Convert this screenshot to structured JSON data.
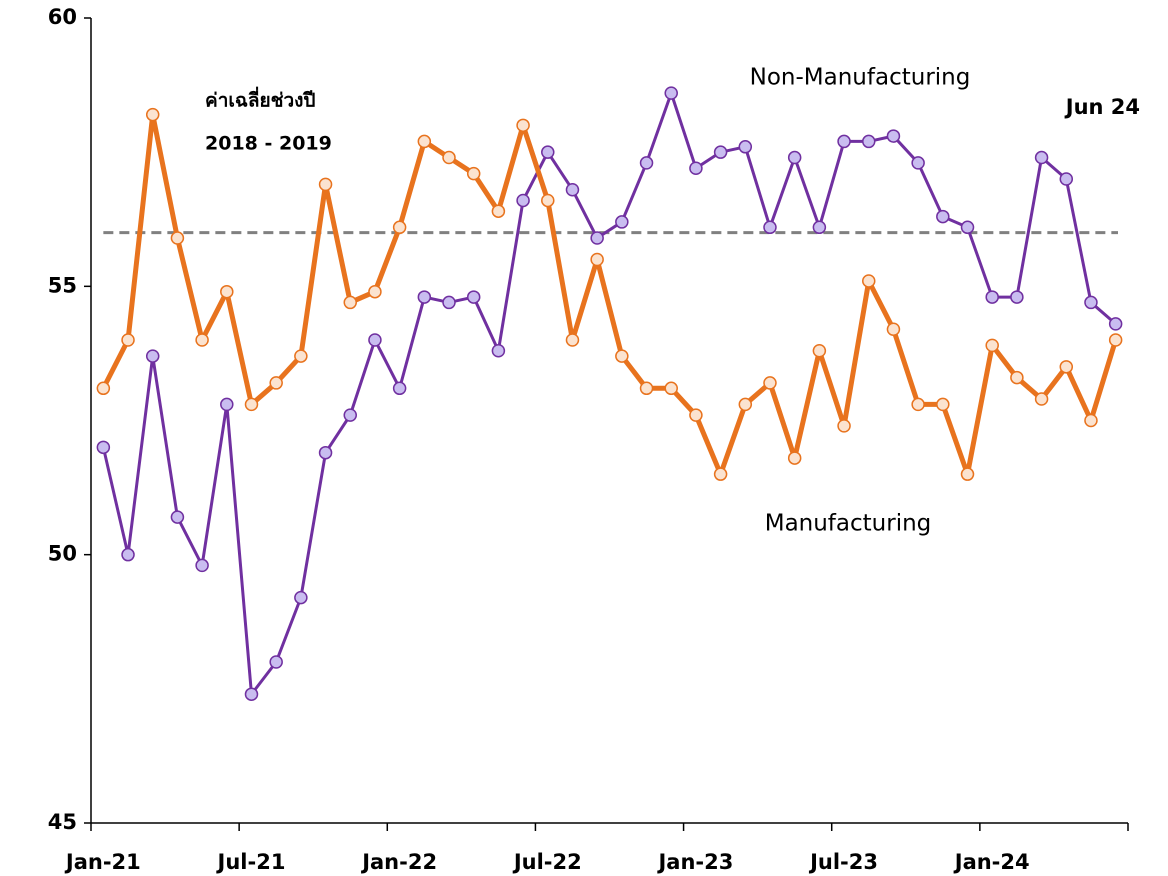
{
  "chart_data": {
    "type": "line",
    "categories": [
      "Jan-21",
      null,
      null,
      null,
      null,
      null,
      "Jul-21",
      null,
      null,
      null,
      null,
      null,
      "Jan-22",
      null,
      null,
      null,
      null,
      null,
      "Jul-22",
      null,
      null,
      null,
      null,
      null,
      "Jan-23",
      null,
      null,
      null,
      null,
      null,
      "Jul-23",
      null,
      null,
      null,
      null,
      null,
      "Jan-24",
      null,
      null,
      null,
      null,
      null
    ],
    "series": [
      {
        "name": "Non-Manufacturing",
        "color": "#7030a0",
        "marker_fill": "#c9bdf0",
        "values": [
          52.0,
          50.0,
          53.7,
          50.7,
          49.8,
          52.8,
          47.4,
          48.0,
          49.2,
          51.9,
          52.6,
          54.0,
          53.1,
          54.8,
          54.7,
          54.8,
          53.8,
          56.6,
          57.5,
          56.8,
          55.9,
          56.2,
          57.3,
          58.6,
          57.2,
          57.5,
          57.6,
          56.1,
          57.4,
          56.1,
          57.7,
          57.7,
          57.8,
          57.3,
          56.3,
          56.1,
          54.8,
          54.8,
          57.4,
          57.0,
          54.7,
          54.3
        ]
      },
      {
        "name": "Manufacturing",
        "color": "#e8731e",
        "marker_fill": "#fbe3d0",
        "values": [
          53.1,
          54.0,
          58.2,
          55.9,
          54.0,
          54.9,
          52.8,
          53.2,
          53.7,
          56.9,
          54.7,
          54.9,
          56.1,
          57.7,
          57.4,
          57.1,
          56.4,
          58.0,
          56.6,
          54.0,
          55.5,
          53.7,
          53.1,
          53.1,
          52.6,
          51.5,
          52.8,
          53.2,
          51.8,
          53.8,
          52.4,
          55.1,
          54.2,
          52.8,
          52.8,
          51.5,
          53.9,
          53.3,
          52.9,
          53.5,
          52.5,
          54.0
        ]
      }
    ],
    "ylim": [
      45,
      60
    ],
    "yticks": [
      45,
      50,
      55,
      60
    ],
    "reference_line": {
      "value": 56,
      "color": "#808080",
      "label": [
        "ค่าเฉลี่ยช่วงปี",
        "2018 - 2019"
      ]
    },
    "annotation": "Jun 24"
  }
}
